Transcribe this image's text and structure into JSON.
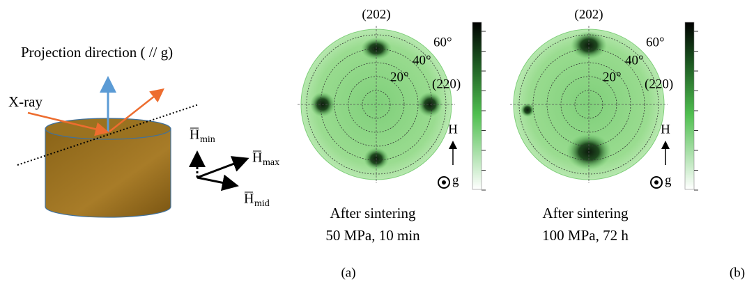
{
  "schematic": {
    "projection_label": "Projection direction ( // g)",
    "xray_label": "X-ray",
    "axes": [
      {
        "symbol": "H",
        "subscript": "min"
      },
      {
        "symbol": "H",
        "subscript": "max"
      },
      {
        "symbol": "H",
        "subscript": "mid"
      }
    ]
  },
  "pole_figures": [
    {
      "top_label": "(202)",
      "ring_labels": [
        "60°",
        "40°",
        "20°"
      ],
      "side_label": "(220)",
      "field_label": "H",
      "g_label": "g",
      "caption": [
        "After sintering",
        "50 MPa, 10 min"
      ]
    },
    {
      "top_label": "(202)",
      "ring_labels": [
        "60°",
        "40°",
        "20°"
      ],
      "side_label": "(220)",
      "field_label": "H",
      "g_label": "g",
      "caption": [
        "After sintering",
        "100 MPa, 72 h"
      ]
    }
  ],
  "panel_labels": [
    "(a)",
    "(b)"
  ]
}
